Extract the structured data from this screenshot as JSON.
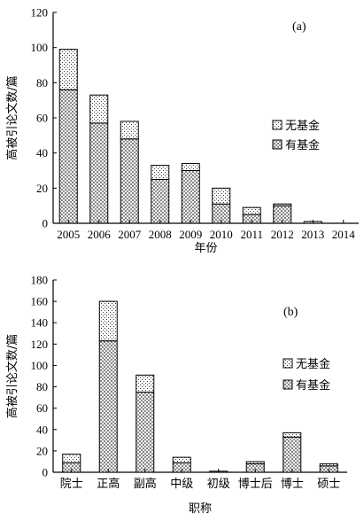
{
  "chart_data": [
    {
      "type": "bar",
      "stacked": true,
      "panel_label": "(a)",
      "categories": [
        "2005",
        "2006",
        "2007",
        "2008",
        "2009",
        "2010",
        "2011",
        "2012",
        "2013",
        "2014"
      ],
      "series": [
        {
          "name": "有基金",
          "values": [
            76,
            57,
            48,
            25,
            30,
            11,
            5,
            10,
            0,
            0
          ]
        },
        {
          "name": "无基金",
          "values": [
            23,
            16,
            10,
            8,
            4,
            9,
            4,
            1,
            1,
            0
          ]
        }
      ],
      "legend_order": [
        "无基金",
        "有基金"
      ],
      "xlabel": "年份",
      "ylabel": "高被引论文数/篇",
      "ylim": [
        0,
        120
      ],
      "yticks": [
        0,
        20,
        40,
        60,
        80,
        100,
        120
      ],
      "legend_position": "middle-right"
    },
    {
      "type": "bar",
      "stacked": true,
      "panel_label": "(b)",
      "categories": [
        "院士",
        "正高",
        "副高",
        "中级",
        "初级",
        "博士后",
        "博士",
        "硕士"
      ],
      "series": [
        {
          "name": "有基金",
          "values": [
            9,
            123,
            75,
            9,
            1,
            8,
            33,
            6
          ]
        },
        {
          "name": "无基金",
          "values": [
            8,
            37,
            16,
            5,
            0,
            2,
            4,
            2
          ]
        }
      ],
      "legend_order": [
        "无基金",
        "有基金"
      ],
      "xlabel": "职称",
      "ylabel": "高被引论文数/篇",
      "ylim": [
        0,
        180
      ],
      "yticks": [
        0,
        20,
        40,
        60,
        80,
        100,
        120,
        140,
        160,
        180
      ],
      "legend_position": "middle-right"
    }
  ]
}
